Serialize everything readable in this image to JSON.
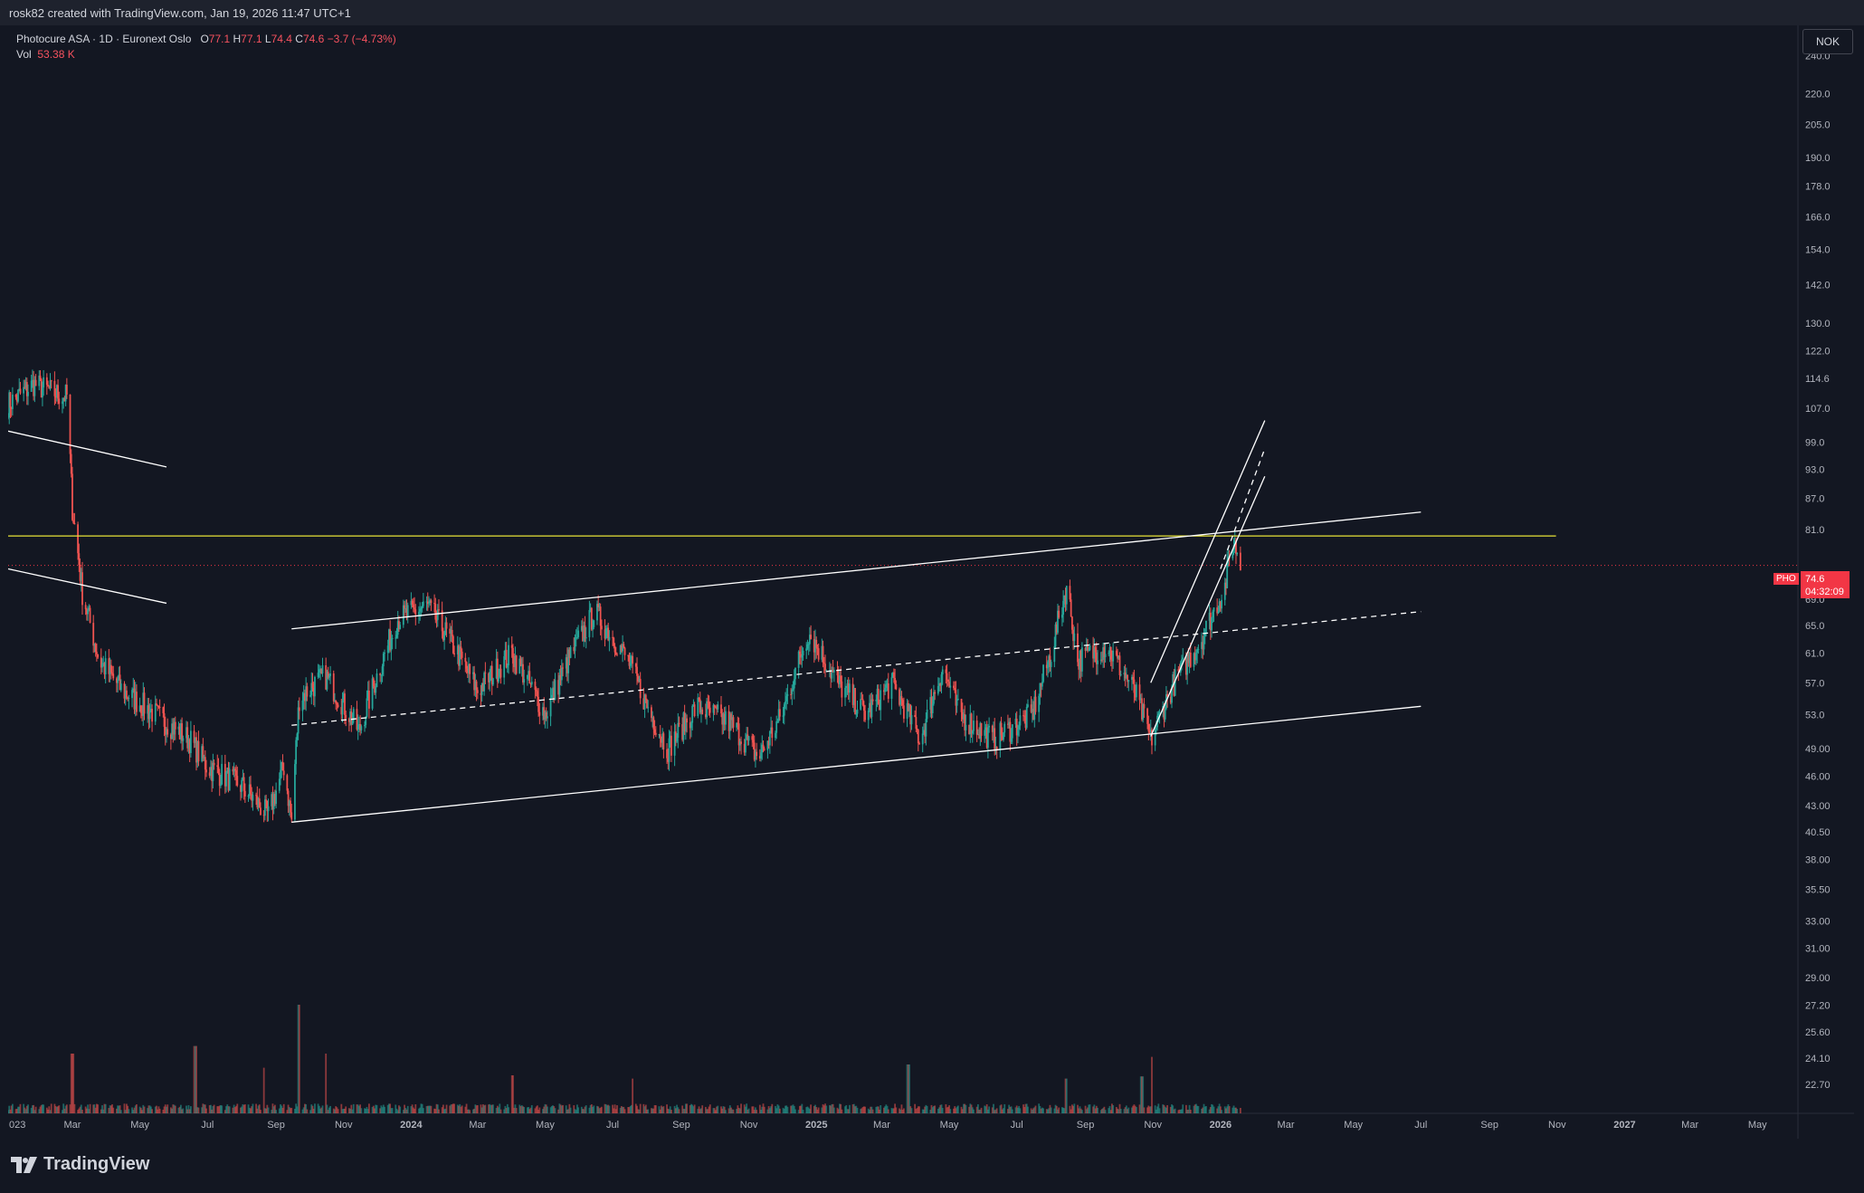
{
  "header": {
    "caption": "rosk82 created with TradingView.com, Jan 19, 2026 11:47 UTC+1"
  },
  "legend": {
    "symbol_line": "Photocure ASA · 1D · Euronext Oslo",
    "o_label": "O",
    "o_value": "77.1",
    "h_label": "H",
    "h_value": "77.1",
    "l_label": "L",
    "l_value": "74.4",
    "c_label": "C",
    "c_value": "74.6",
    "change": "−3.7 (−4.73%)",
    "vol_label": "Vol",
    "vol_value": "53.38 K"
  },
  "currency": "NOK",
  "price_tag": {
    "symbol": "PHO",
    "price": "74.6",
    "countdown": "04:32:09"
  },
  "brand": {
    "name": "TradingView",
    "icon": "tradingview-logo-icon"
  },
  "colors": {
    "background": "#131722",
    "up": "#26a69a",
    "down": "#ef5350",
    "horizontal_line": "#e8e337",
    "price_line": "#f23645",
    "trendline": "#ffffff"
  },
  "chart_data": {
    "type": "candlestick",
    "y_scale": "log",
    "ylim": [
      21.5,
      250
    ],
    "x_range": [
      "2023-01-02",
      "2027-05-31"
    ],
    "y_tick_labels": [
      "240.0",
      "220.0",
      "205.0",
      "190.0",
      "178.0",
      "166.0",
      "154.0",
      "142.0",
      "130.0",
      "122.0",
      "114.6",
      "107.0",
      "99.0",
      "93.0",
      "87.0",
      "81.0",
      "69.0",
      "65.0",
      "61.0",
      "57.0",
      "53.0",
      "49.00",
      "46.00",
      "43.00",
      "40.50",
      "38.00",
      "35.50",
      "33.00",
      "31.00",
      "29.00",
      "27.20",
      "25.60",
      "24.10",
      "22.70"
    ],
    "x_tick_labels": [
      "023",
      "Mar",
      "May",
      "Jul",
      "Sep",
      "Nov",
      "2024",
      "Mar",
      "May",
      "Jul",
      "Sep",
      "Nov",
      "2025",
      "Mar",
      "May",
      "Jul",
      "Sep",
      "Nov",
      "2026",
      "Mar",
      "May",
      "Jul",
      "Sep",
      "Nov",
      "2027",
      "Mar",
      "May"
    ],
    "last_price": 74.6,
    "price_path": [
      [
        "2023-01-02",
        108
      ],
      [
        "2023-01-25",
        113
      ],
      [
        "2023-02-20",
        110
      ],
      [
        "2023-02-24",
        110
      ],
      [
        "2023-03-01",
        85
      ],
      [
        "2023-03-10",
        70
      ],
      [
        "2023-03-25",
        60
      ],
      [
        "2023-04-15",
        56
      ],
      [
        "2023-05-15",
        53
      ],
      [
        "2023-06-15",
        50
      ],
      [
        "2023-07-01",
        47
      ],
      [
        "2023-08-01",
        45
      ],
      [
        "2023-08-25",
        42
      ],
      [
        "2023-09-08",
        47
      ],
      [
        "2023-09-15",
        41.5
      ],
      [
        "2023-09-22",
        55
      ],
      [
        "2023-10-15",
        58
      ],
      [
        "2023-11-15",
        51
      ],
      [
        "2023-12-20",
        66
      ],
      [
        "2024-01-15",
        68
      ],
      [
        "2024-02-01",
        64
      ],
      [
        "2024-03-01",
        56
      ],
      [
        "2024-04-01",
        61
      ],
      [
        "2024-05-01",
        53
      ],
      [
        "2024-05-25",
        61
      ],
      [
        "2024-06-15",
        67
      ],
      [
        "2024-07-15",
        60
      ],
      [
        "2024-08-01",
        54
      ],
      [
        "2024-08-20",
        49
      ],
      [
        "2024-09-15",
        54
      ],
      [
        "2024-10-15",
        52
      ],
      [
        "2024-11-10",
        48
      ],
      [
        "2024-12-01",
        53
      ],
      [
        "2024-12-25",
        64
      ],
      [
        "2025-01-20",
        57
      ],
      [
        "2025-02-15",
        53
      ],
      [
        "2025-03-10",
        57
      ],
      [
        "2025-04-05",
        50
      ],
      [
        "2025-04-25",
        59
      ],
      [
        "2025-05-10",
        53
      ],
      [
        "2025-06-10",
        50
      ],
      [
        "2025-07-15",
        53
      ],
      [
        "2025-08-01",
        61
      ],
      [
        "2025-08-15",
        71
      ],
      [
        "2025-08-25",
        60
      ],
      [
        "2025-09-20",
        62
      ],
      [
        "2025-10-15",
        56
      ],
      [
        "2025-10-30",
        50
      ],
      [
        "2025-11-20",
        57
      ],
      [
        "2025-12-15",
        63
      ],
      [
        "2026-01-05",
        71
      ],
      [
        "2026-01-12",
        79
      ],
      [
        "2026-01-16",
        77.1
      ],
      [
        "2026-01-19",
        74.6
      ]
    ],
    "volume_spikes": [
      [
        "2023-03-01",
        0.55
      ],
      [
        "2023-06-20",
        0.62
      ],
      [
        "2023-08-20",
        0.42
      ],
      [
        "2023-09-22",
        1.0
      ],
      [
        "2023-10-15",
        0.55
      ],
      [
        "2024-04-01",
        0.35
      ],
      [
        "2024-07-20",
        0.32
      ],
      [
        "2025-03-25",
        0.45
      ],
      [
        "2025-08-15",
        0.32
      ],
      [
        "2025-10-22",
        0.34
      ],
      [
        "2025-11-01",
        0.52
      ]
    ],
    "trendlines": [
      {
        "style": "solid",
        "color": "#ffffff",
        "from": [
          "2023-01-02",
          101.5
        ],
        "to": [
          "2023-05-25",
          93.5
        ]
      },
      {
        "style": "solid",
        "color": "#ffffff",
        "from": [
          "2023-01-02",
          74.0
        ],
        "to": [
          "2023-05-25",
          68.4
        ]
      },
      {
        "style": "solid",
        "color": "#ffffff",
        "from": [
          "2023-09-15",
          64.5
        ],
        "to": [
          "2026-07-01",
          84.3
        ]
      },
      {
        "style": "dashed",
        "color": "#ffffff",
        "from": [
          "2023-09-15",
          51.7
        ],
        "to": [
          "2026-07-01",
          67.1
        ]
      },
      {
        "style": "solid",
        "color": "#ffffff",
        "from": [
          "2023-09-15",
          41.4
        ],
        "to": [
          "2026-07-01",
          54.0
        ]
      },
      {
        "style": "solid",
        "color": "#ffffff",
        "from": [
          "2025-10-30",
          57.0
        ],
        "to": [
          "2026-02-10",
          104.0
        ]
      },
      {
        "style": "solid",
        "color": "#ffffff",
        "from": [
          "2025-10-30",
          50.4
        ],
        "to": [
          "2026-02-10",
          91.5
        ]
      },
      {
        "style": "dashed",
        "color": "#ffffff",
        "from": [
          "2026-01-01",
          74.0
        ],
        "to": [
          "2026-02-10",
          97.5
        ]
      }
    ],
    "horizontal_levels": [
      {
        "value": 79.8,
        "color": "#e8e337",
        "from": "2023-01-02",
        "to": "2026-10-31"
      }
    ]
  }
}
